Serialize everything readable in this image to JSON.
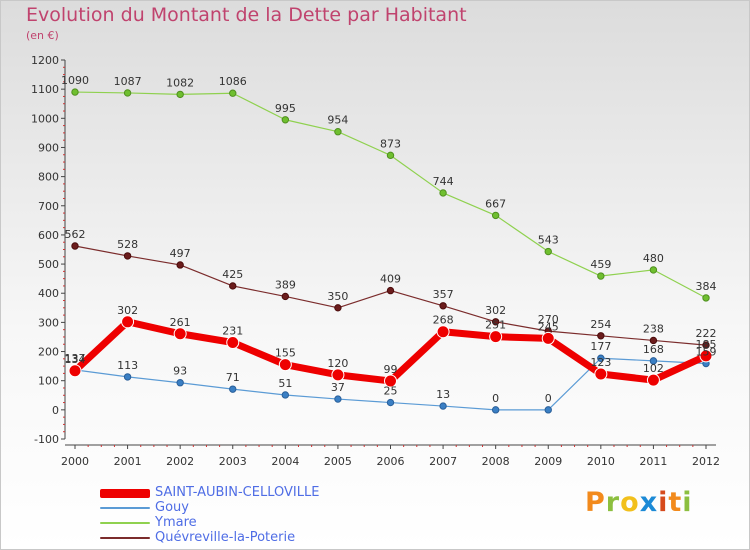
{
  "chart_data": {
    "type": "line",
    "title": "Evolution du Montant de la Dette par Habitant",
    "subtitle": "(en €)",
    "x": [
      "2000",
      "2001",
      "2002",
      "2003",
      "2004",
      "2005",
      "2006",
      "2007",
      "2008",
      "2009",
      "2010",
      "2011",
      "2012"
    ],
    "ylim": [
      -100,
      1200
    ],
    "yticks": [
      -100,
      0,
      100,
      200,
      300,
      400,
      500,
      600,
      700,
      800,
      900,
      1000,
      1100,
      1200
    ],
    "grid": false,
    "legend_position": "bottom",
    "series": [
      {
        "name": "SAINT-AUBIN-CELLOVILLE",
        "color": "#ee0000",
        "values": [
          134,
          302,
          261,
          231,
          155,
          120,
          99,
          268,
          251,
          245,
          123,
          102,
          185
        ]
      },
      {
        "name": "Gouy",
        "color": "#5b9bd5",
        "values": [
          137,
          113,
          93,
          71,
          51,
          37,
          25,
          13,
          0,
          0,
          177,
          168,
          159
        ]
      },
      {
        "name": "Ymare",
        "color": "#8fd14f",
        "values": [
          1090,
          1087,
          1082,
          1086,
          995,
          954,
          873,
          744,
          667,
          543,
          459,
          480,
          384
        ]
      },
      {
        "name": "Quévreville-la-Poterie",
        "color": "#7b2c2c",
        "values": [
          562,
          528,
          497,
          425,
          389,
          350,
          409,
          357,
          302,
          270,
          254,
          238,
          222
        ]
      }
    ]
  },
  "legend": {
    "item0": "SAINT-AUBIN-CELLOVILLE",
    "item1": "Gouy",
    "item2": "Ymare",
    "item3": "Quévreville-la-Poterie"
  },
  "colors": {
    "title": "#c0436e",
    "legend_text": "#4f6de5"
  },
  "logo_text": "Proxiti"
}
